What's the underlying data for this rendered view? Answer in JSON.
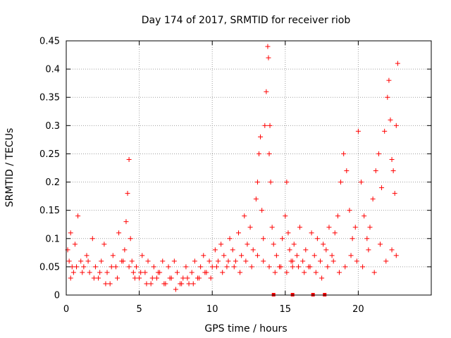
{
  "chart_data": {
    "type": "scatter",
    "title": "Day 174 of 2017, SRMTID for receiver riob",
    "xlabel": "GPS time / hours",
    "ylabel": "SRMTID / TECUs",
    "xlim": [
      0,
      25
    ],
    "ylim": [
      0,
      0.45
    ],
    "grid": true,
    "marker": "+",
    "color": "#ff0000",
    "xticks": [
      "0",
      "5",
      "10",
      "15",
      "20"
    ],
    "xtick_values": [
      0,
      5,
      10,
      15,
      20
    ],
    "yticks": [
      "0",
      "0.05",
      "0.1",
      "0.15",
      "0.2",
      "0.25",
      "0.3",
      "0.35",
      "0.4",
      "0.45"
    ],
    "ytick_values": [
      0,
      0.05,
      0.1,
      0.15,
      0.2,
      0.25,
      0.3,
      0.35,
      0.4,
      0.45
    ],
    "zero_markers_x": [
      14.2,
      15.5,
      16.9,
      17.7
    ],
    "series": [
      {
        "name": "SRMTID",
        "x": [
          0.1,
          0.2,
          0.3,
          0.4,
          0.5,
          0.6,
          0.8,
          1.0,
          1.2,
          1.4,
          1.6,
          1.8,
          2.0,
          2.2,
          2.4,
          2.6,
          2.8,
          3.0,
          3.2,
          3.4,
          3.6,
          3.8,
          4.0,
          4.1,
          4.2,
          4.3,
          4.4,
          4.5,
          4.6,
          4.8,
          5.0,
          5.2,
          5.4,
          5.6,
          5.8,
          6.0,
          6.2,
          6.4,
          6.6,
          6.8,
          7.0,
          7.2,
          7.4,
          7.6,
          7.8,
          8.0,
          8.2,
          8.4,
          8.6,
          8.8,
          9.0,
          9.2,
          9.4,
          9.6,
          9.8,
          10.0,
          10.2,
          10.4,
          10.6,
          10.8,
          11.0,
          11.2,
          11.4,
          11.6,
          11.8,
          12.0,
          12.2,
          12.4,
          12.6,
          12.8,
          13.0,
          13.1,
          13.2,
          13.3,
          13.4,
          13.5,
          13.6,
          13.7,
          13.8,
          13.85,
          13.9,
          13.95,
          14.0,
          14.1,
          14.2,
          14.4,
          14.6,
          14.8,
          15.0,
          15.1,
          15.2,
          15.3,
          15.4,
          15.5,
          15.6,
          15.8,
          16.0,
          16.2,
          16.4,
          16.6,
          16.8,
          17.0,
          17.2,
          17.4,
          17.6,
          17.8,
          18.0,
          18.2,
          18.4,
          18.6,
          18.8,
          19.0,
          19.2,
          19.4,
          19.6,
          19.8,
          20.0,
          20.2,
          20.4,
          20.6,
          20.8,
          21.0,
          21.2,
          21.4,
          21.6,
          21.8,
          22.0,
          22.1,
          22.2,
          22.3,
          22.4,
          22.5,
          22.6,
          22.7,
          0.3,
          0.7,
          1.1,
          1.5,
          1.9,
          2.3,
          2.7,
          3.1,
          3.5,
          3.9,
          4.3,
          4.7,
          5.1,
          5.5,
          5.9,
          6.3,
          6.7,
          7.1,
          7.5,
          7.9,
          8.3,
          8.7,
          9.1,
          9.5,
          9.9,
          10.3,
          10.7,
          11.1,
          11.5,
          11.9,
          12.3,
          12.7,
          13.1,
          13.5,
          13.9,
          14.3,
          14.7,
          15.1,
          15.5,
          15.9,
          16.3,
          16.7,
          17.1,
          17.5,
          17.9,
          18.3,
          18.7,
          19.1,
          19.5,
          19.9,
          20.3,
          20.7,
          21.1,
          21.5,
          21.9,
          22.3,
          22.6
        ],
        "y": [
          0.08,
          0.06,
          0.11,
          0.05,
          0.04,
          0.09,
          0.14,
          0.06,
          0.05,
          0.07,
          0.04,
          0.1,
          0.05,
          0.03,
          0.06,
          0.09,
          0.04,
          0.02,
          0.07,
          0.05,
          0.11,
          0.06,
          0.08,
          0.13,
          0.18,
          0.24,
          0.1,
          0.06,
          0.04,
          0.05,
          0.03,
          0.07,
          0.04,
          0.06,
          0.02,
          0.05,
          0.03,
          0.04,
          0.06,
          0.02,
          0.05,
          0.03,
          0.06,
          0.04,
          0.02,
          0.03,
          0.05,
          0.02,
          0.04,
          0.06,
          0.03,
          0.05,
          0.07,
          0.04,
          0.06,
          0.05,
          0.08,
          0.06,
          0.09,
          0.07,
          0.05,
          0.1,
          0.08,
          0.06,
          0.11,
          0.07,
          0.14,
          0.09,
          0.12,
          0.08,
          0.17,
          0.2,
          0.25,
          0.28,
          0.15,
          0.1,
          0.3,
          0.36,
          0.44,
          0.42,
          0.25,
          0.3,
          0.2,
          0.12,
          0.09,
          0.07,
          0.05,
          0.1,
          0.14,
          0.2,
          0.11,
          0.08,
          0.06,
          0.05,
          0.09,
          0.07,
          0.12,
          0.06,
          0.08,
          0.05,
          0.11,
          0.07,
          0.1,
          0.06,
          0.09,
          0.08,
          0.12,
          0.07,
          0.11,
          0.14,
          0.2,
          0.25,
          0.22,
          0.15,
          0.1,
          0.12,
          0.29,
          0.2,
          0.14,
          0.1,
          0.12,
          0.17,
          0.22,
          0.25,
          0.19,
          0.29,
          0.35,
          0.38,
          0.31,
          0.24,
          0.22,
          0.18,
          0.3,
          0.41,
          0.03,
          0.05,
          0.04,
          0.06,
          0.03,
          0.04,
          0.02,
          0.05,
          0.03,
          0.06,
          0.05,
          0.03,
          0.04,
          0.02,
          0.03,
          0.04,
          0.02,
          0.03,
          0.01,
          0.02,
          0.03,
          0.02,
          0.03,
          0.04,
          0.03,
          0.05,
          0.04,
          0.06,
          0.05,
          0.04,
          0.06,
          0.05,
          0.07,
          0.06,
          0.05,
          0.04,
          0.05,
          0.04,
          0.06,
          0.05,
          0.04,
          0.05,
          0.04,
          0.03,
          0.05,
          0.06,
          0.04,
          0.05,
          0.07,
          0.06,
          0.05,
          0.08,
          0.04,
          0.09,
          0.06,
          0.08,
          0.07
        ]
      }
    ]
  }
}
